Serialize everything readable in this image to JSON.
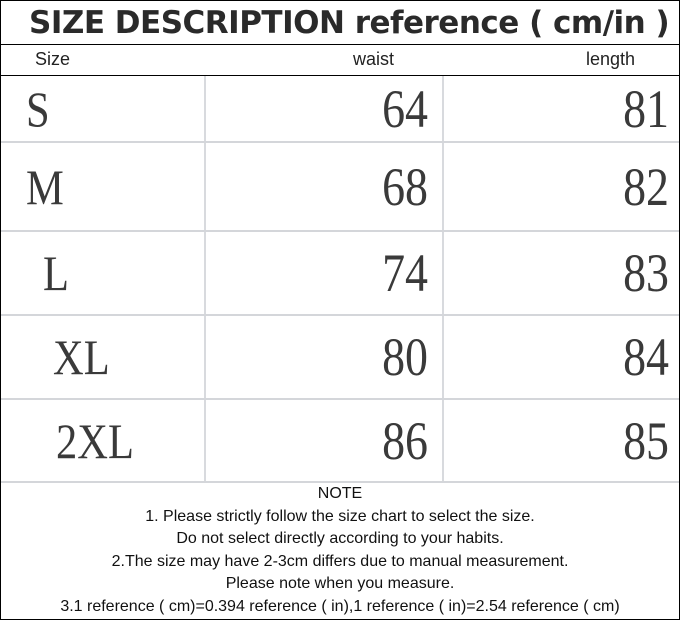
{
  "title": "SIZE DESCRIPTION reference ( cm/in )",
  "headers": {
    "size": "Size",
    "waist": "waist",
    "length": "length"
  },
  "rows": [
    {
      "size": "S",
      "waist": "64",
      "length": "81"
    },
    {
      "size": "M",
      "waist": "68",
      "length": "82"
    },
    {
      "size": "L",
      "waist": "74",
      "length": "83"
    },
    {
      "size": "XL",
      "waist": "80",
      "length": "84"
    },
    {
      "size": "2XL",
      "waist": "86",
      "length": "85"
    }
  ],
  "notes": {
    "heading": "NOTE",
    "lines": [
      "1. Please strictly follow the size chart to select the size.",
      "Do not select directly according to your habits.",
      "2.The size may have 2-3cm differs due to manual measurement.",
      "Please note when you measure.",
      "3.1 reference ( cm)=0.394 reference ( in),1 reference ( in)=2.54 reference ( cm)"
    ]
  }
}
